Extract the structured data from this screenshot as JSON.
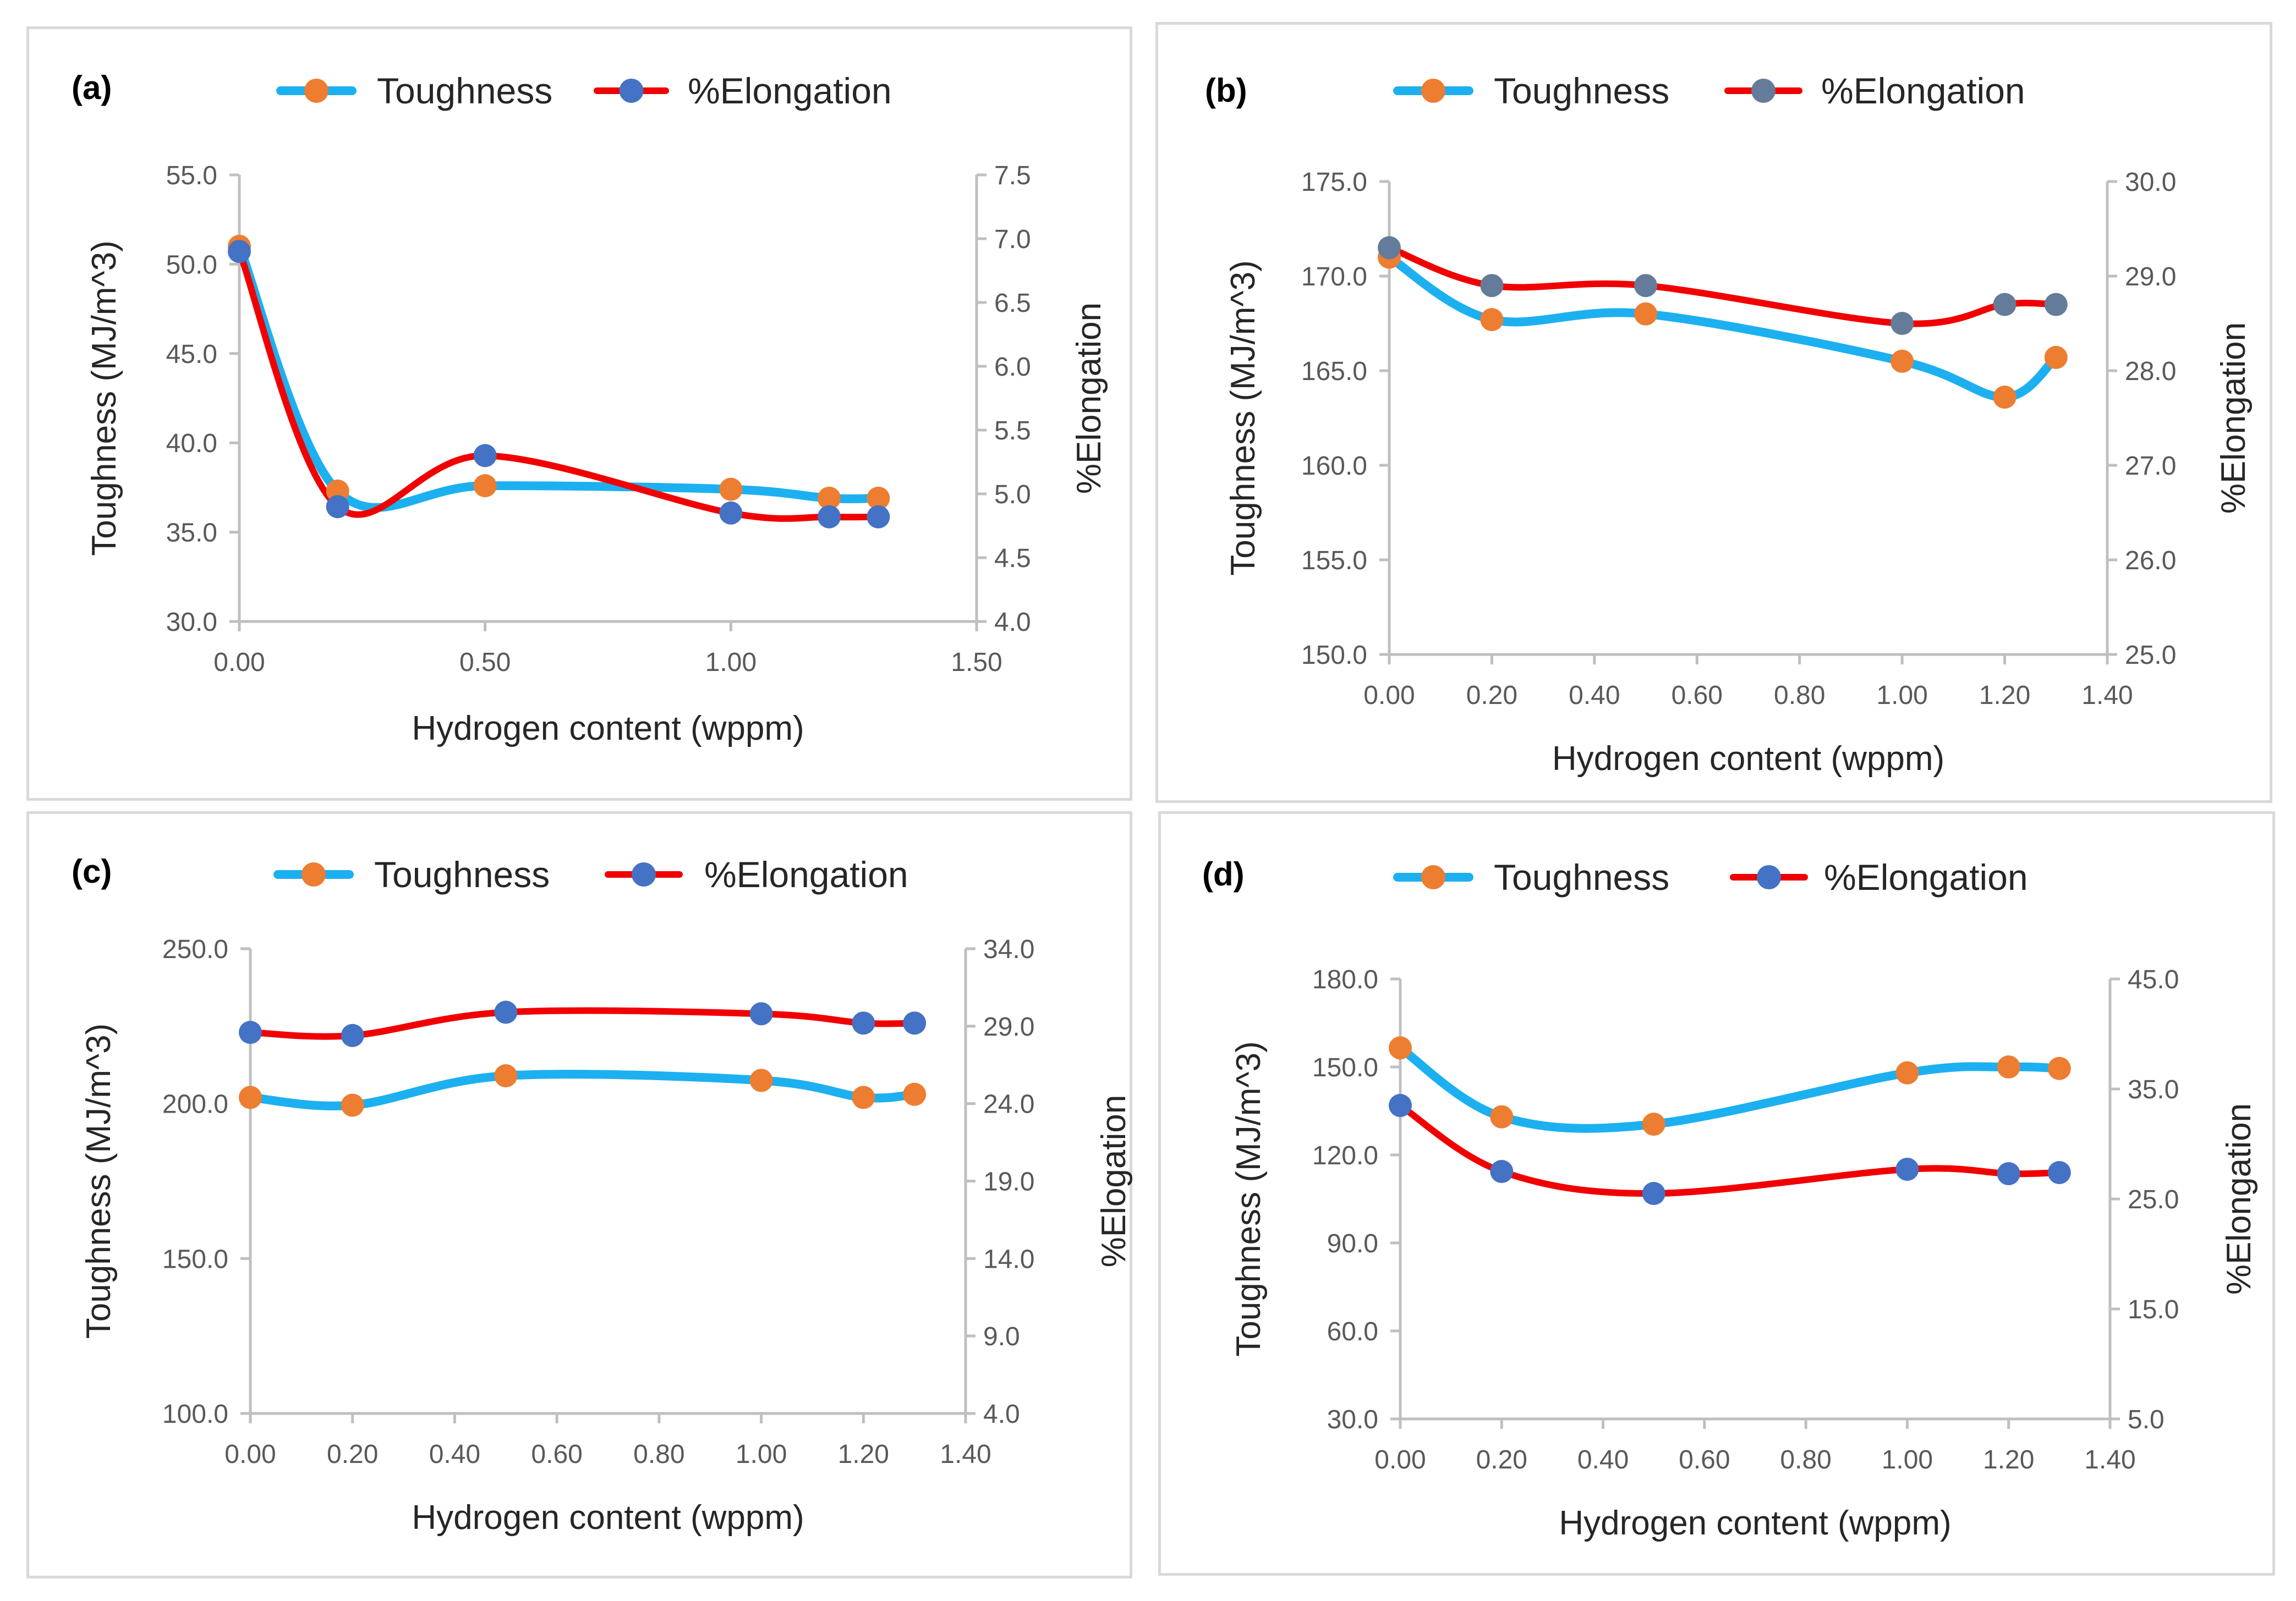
{
  "colors": {
    "toughness_line": "#1CB0F0",
    "elongation_line": "#F00000",
    "toughness_marker": "#ED7D31",
    "elongation_marker": "#4472C4",
    "elongation_marker_b": "#647C9A",
    "axis": "#bfbfbf",
    "tick_text": "#595959"
  },
  "chart_data": [
    {
      "type": "line",
      "panel_label": "(a)",
      "xlabel": "Hydrogen content (wppm)",
      "ylabel": "Toughness (MJ/m^3)",
      "y2label": "%Elongation",
      "x": [
        0.0,
        0.2,
        0.5,
        1.0,
        1.2,
        1.3
      ],
      "xlim": [
        0.0,
        1.5
      ],
      "xticks": [
        "0.00",
        "0.50",
        "1.00",
        "1.50"
      ],
      "ylim": [
        30,
        55
      ],
      "yticks": [
        "30.0",
        "35.0",
        "40.0",
        "45.0",
        "50.0",
        "55.0"
      ],
      "y2lim": [
        4.0,
        7.5
      ],
      "y2ticks": [
        "4.0",
        "4.5",
        "5.0",
        "5.5",
        "6.0",
        "6.5",
        "7.0",
        "7.5"
      ],
      "series": [
        {
          "name": "Toughness",
          "axis": "left",
          "values": [
            51.0,
            37.3,
            37.6,
            37.4,
            36.9,
            36.9
          ]
        },
        {
          "name": "%Elongation",
          "axis": "right",
          "values": [
            6.9,
            4.9,
            5.3,
            4.85,
            4.82,
            4.82
          ]
        }
      ],
      "legend_position": "top"
    },
    {
      "type": "line",
      "panel_label": "(b)",
      "xlabel": "Hydrogen content (wppm)",
      "ylabel": "Toughness (MJ/m^3)",
      "y2label": "%Elongation",
      "x": [
        0.0,
        0.2,
        0.5,
        1.0,
        1.2,
        1.3
      ],
      "xlim": [
        0.0,
        1.4
      ],
      "xticks": [
        "0.00",
        "0.20",
        "0.40",
        "0.60",
        "0.80",
        "1.00",
        "1.20",
        "1.40"
      ],
      "ylim": [
        150,
        175
      ],
      "yticks": [
        "150.0",
        "155.0",
        "160.0",
        "165.0",
        "170.0",
        "175.0"
      ],
      "y2lim": [
        25.0,
        30.0
      ],
      "y2ticks": [
        "25.0",
        "26.0",
        "27.0",
        "28.0",
        "29.0",
        "30.0"
      ],
      "series": [
        {
          "name": "Toughness",
          "axis": "left",
          "values": [
            171.0,
            167.7,
            168.0,
            165.5,
            163.6,
            165.7
          ]
        },
        {
          "name": "%Elongation",
          "axis": "right",
          "values": [
            29.3,
            28.9,
            28.9,
            28.5,
            28.7,
            28.7
          ]
        }
      ],
      "legend_position": "top"
    },
    {
      "type": "line",
      "panel_label": "(c)",
      "xlabel": "Hydrogen content (wppm)",
      "ylabel": "Toughness (MJ/m^3)",
      "y2label": "%Elogation",
      "x": [
        0.0,
        0.2,
        0.5,
        1.0,
        1.2,
        1.3
      ],
      "xlim": [
        0.0,
        1.4
      ],
      "xticks": [
        "0.00",
        "0.20",
        "0.40",
        "0.60",
        "0.80",
        "1.00",
        "1.20",
        "1.40"
      ],
      "ylim": [
        100,
        250
      ],
      "yticks": [
        "100.0",
        "150.0",
        "200.0",
        "250.0"
      ],
      "y2lim": [
        4.0,
        34.0
      ],
      "y2ticks": [
        "4.0",
        "9.0",
        "14.0",
        "19.0",
        "24.0",
        "29.0",
        "34.0"
      ],
      "series": [
        {
          "name": "Toughness",
          "axis": "left",
          "values": [
            202.0,
            199.5,
            209.0,
            207.5,
            202.0,
            203.0
          ]
        },
        {
          "name": "%Elongation",
          "axis": "right",
          "values": [
            28.6,
            28.4,
            29.9,
            29.8,
            29.2,
            29.2
          ]
        }
      ],
      "legend_position": "top"
    },
    {
      "type": "line",
      "panel_label": "(d)",
      "xlabel": "Hydrogen content (wppm)",
      "ylabel": "Toughness (MJ/m^3)",
      "y2label": "%Elongation",
      "x": [
        0.0,
        0.2,
        0.5,
        1.0,
        1.2,
        1.3
      ],
      "xlim": [
        0.0,
        1.4
      ],
      "xticks": [
        "0.00",
        "0.20",
        "0.40",
        "0.60",
        "0.80",
        "1.00",
        "1.20",
        "1.40"
      ],
      "ylim": [
        30,
        180
      ],
      "yticks": [
        "30.0",
        "60.0",
        "90.0",
        "120.0",
        "150.0",
        "180.0"
      ],
      "y2lim": [
        5.0,
        45.0
      ],
      "y2ticks": [
        "5.0",
        "15.0",
        "25.0",
        "35.0",
        "45.0"
      ],
      "series": [
        {
          "name": "Toughness",
          "axis": "left",
          "values": [
            156.5,
            133.0,
            130.5,
            148.0,
            150.0,
            149.5
          ]
        },
        {
          "name": "%Elongation",
          "axis": "right",
          "values": [
            33.5,
            27.5,
            25.5,
            27.7,
            27.3,
            27.4
          ]
        }
      ],
      "legend_position": "top"
    }
  ]
}
